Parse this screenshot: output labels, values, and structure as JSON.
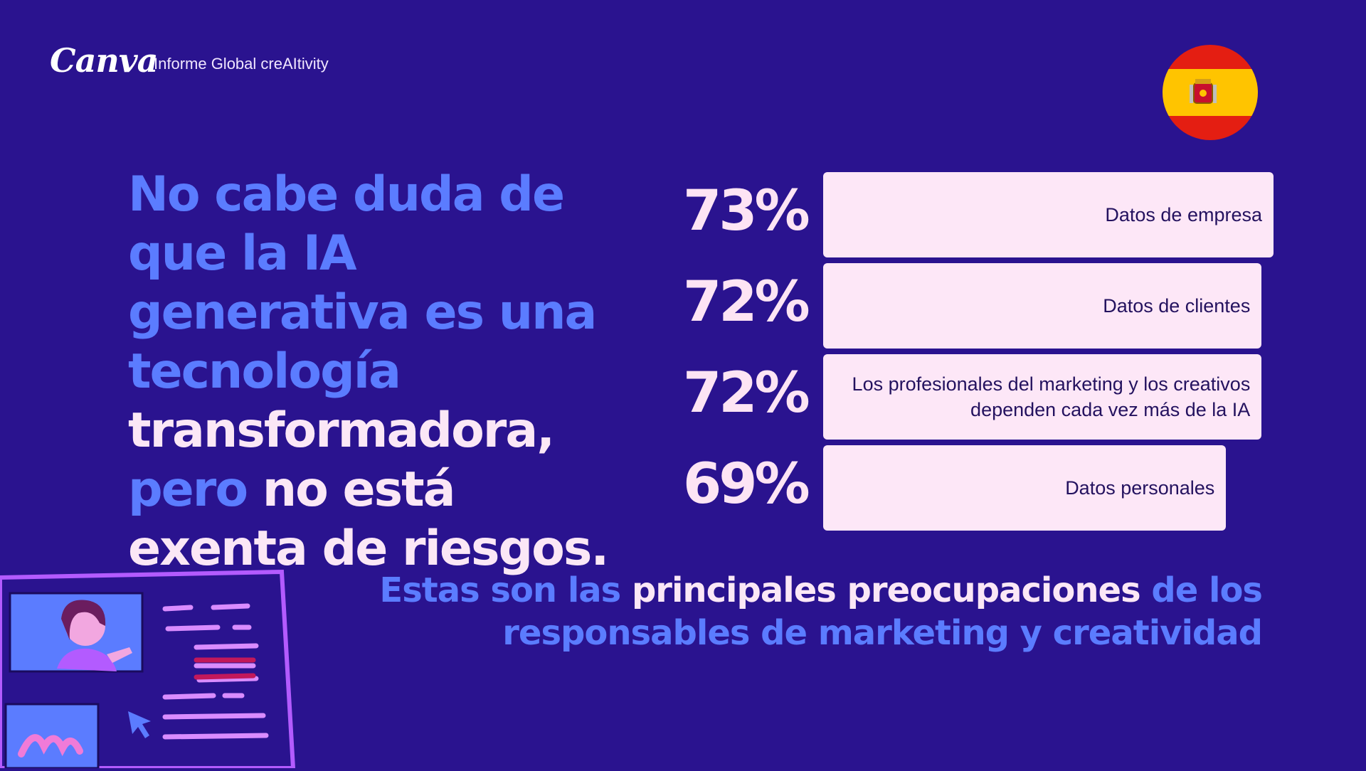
{
  "brand": {
    "logo": "Canva",
    "report_name": "Informe Global creAItivity"
  },
  "flag": {
    "country": "España",
    "colors": {
      "red": "#e41e12",
      "yellow": "#ffc400"
    }
  },
  "headline": {
    "part1": " No cabe duda de que la IA generativa es una tecnología ",
    "part2": "transformadora,",
    "part3": " pero ",
    "part4": "no está exenta de riesgos."
  },
  "chart_data": {
    "type": "bar",
    "orientation": "horizontal",
    "unit": "%",
    "categories": [
      "Datos de empresa",
      "Datos de clientes",
      "Los profesionales del marketing y los creativos dependen cada vez más de la IA",
      "Datos personales"
    ],
    "values": [
      73,
      72,
      72,
      69
    ],
    "value_labels": [
      "73%",
      "72%",
      "72%",
      "69%"
    ],
    "xlim": [
      0,
      73
    ]
  },
  "subtitle": {
    "part1": "Estas son las ",
    "part2": "principales preocupaciones",
    "part3": " de los responsables de marketing y creatividad"
  },
  "colors": {
    "background": "#2a138f",
    "accent_blue": "#5b7cff",
    "light_pink": "#fde7f7",
    "dark_text": "#24125f",
    "illustration_purple": "#b35bff"
  }
}
